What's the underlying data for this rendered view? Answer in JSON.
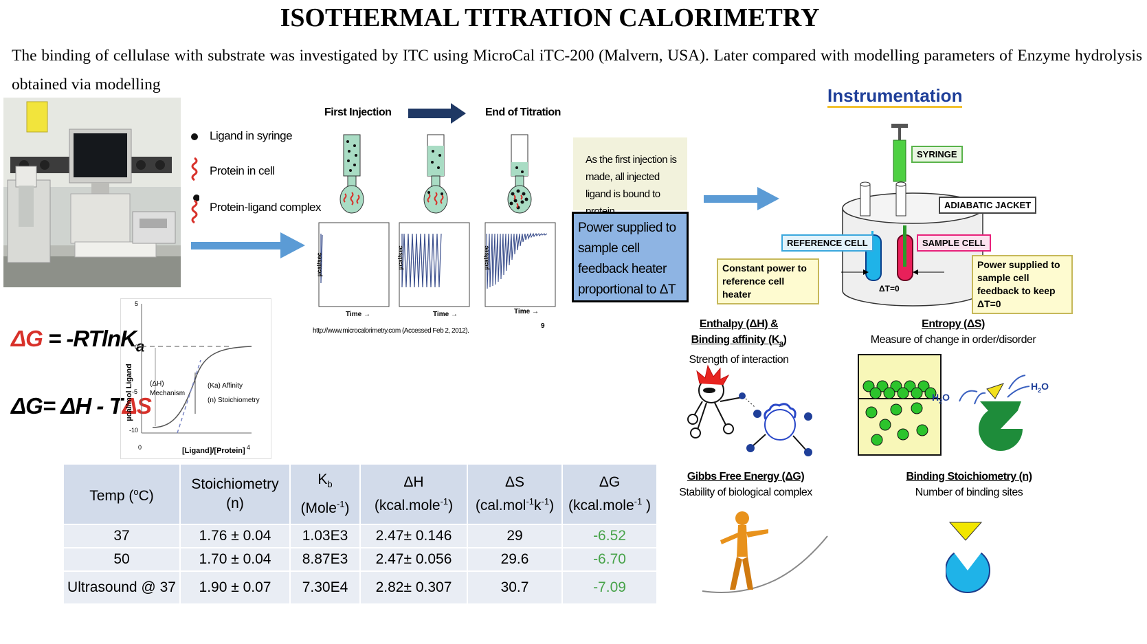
{
  "title": "ISOTHERMAL TITRATION CALORIMETRY",
  "intro": "The binding of cellulase with substrate was investigated by ITC using MicroCal iTC-200 (Malvern, USA). Later compared with modelling parameters of Enzyme hydrolysis obtained via modelling",
  "legend": {
    "ligand": "Ligand in syringe",
    "protein": "Protein in cell",
    "complex": "Protein-ligand complex"
  },
  "titration": {
    "first": "First Injection",
    "end": "End of Titration",
    "ylabel": "µcal/sec",
    "xlabel": "Time",
    "url": "http://www.microcalorimetry.com (Accessed Feb 2, 2012).",
    "page": "9"
  },
  "note_box": "As the first injection is made, all injected ligand is bound to protein",
  "power_box": "Power supplied to sample cell feedback heater proportional to ΔT",
  "equations": {
    "eq1": "ΔG = -RTlnK",
    "eq1_sub": "a",
    "eq2_a": "ΔG= ΔH - T",
    "eq2_b": "ΔS"
  },
  "binding_curve": {
    "ylabel": "µcal/mol Ligand",
    "xlabel": "[Ligand]/[Protein]",
    "yticks": [
      "5",
      "0",
      "-5",
      "-10"
    ],
    "xticks": [
      "0",
      "4"
    ],
    "ann_dh": "(ΔH)",
    "ann_mech": "Mechanism",
    "ann_ka": "(Ka) Affinity",
    "ann_n": "(n) Stoichiometry"
  },
  "instrumentation": {
    "title": "Instrumentation",
    "syringe": "SYRINGE",
    "jacket": "ADIABATIC JACKET",
    "ref_cell": "REFERENCE CELL",
    "sample_cell": "SAMPLE CELL",
    "const_power": "Constant power to reference cell heater",
    "power_sample": "Power supplied to sample cell feedback to keep ΔT=0",
    "delta_t": "ΔT=0"
  },
  "panels": {
    "enthalpy_title": "Enthalpy (ΔH) & Binding affinity (K",
    "enthalpy_sub": "a",
    "enthalpy_desc": "Strength of interaction",
    "entropy_title": "Entropy (ΔS)",
    "entropy_desc": "Measure of change in order/disorder",
    "gibbs_title": "Gibbs Free Energy (ΔG)",
    "gibbs_desc": "Stability of biological complex",
    "stoich_title": "Binding Stoichiometry (n)",
    "stoich_desc": "Number of binding sites",
    "h2o": "H",
    "h2o_sub": "2",
    "h2o_end": "O"
  },
  "table": {
    "headers": {
      "temp": "Temp (",
      "temp_sup": "o",
      "temp_end": "C)",
      "stoich1": "Stoichiometry",
      "stoich2": "(n)",
      "kb": "K",
      "kb_sub": "b",
      "kb_unit": "(Mole",
      "kb_unit_sup": "-1",
      "kb_unit_end": ")",
      "dh": "ΔH",
      "dh_unit": "(kcal.mole",
      "dh_unit_sup": "-1",
      "dh_unit_end": ")",
      "ds": "ΔS",
      "ds_unit_a": "(cal.mol",
      "ds_unit_sup1": "-1",
      "ds_unit_b": "k",
      "ds_unit_sup2": "-1",
      "ds_unit_end": ")",
      "dg": "ΔG",
      "dg_unit": "(kcal.mole",
      "dg_unit_sup": "-1",
      "dg_unit_end": " )"
    },
    "rows": [
      {
        "temp": "37",
        "n": "1.76 ± 0.04",
        "kb": "1.03E3",
        "dh": "2.47± 0.146",
        "ds": "29",
        "dg": "-6.52"
      },
      {
        "temp": "50",
        "n": "1.70 ± 0.04",
        "kb": "8.87E3",
        "dh": "2.47± 0.056",
        "ds": "29.6",
        "dg": "-6.70"
      },
      {
        "temp": "Ultrasound @ 37",
        "n": "1.90 ± 0.07",
        "kb": "7.30E4",
        "dh": "2.82± 0.307",
        "ds": "30.7",
        "dg": "-7.09"
      }
    ]
  },
  "colors": {
    "arrow_blue": "#5b9bd5",
    "dark_navy": "#1f3864",
    "power_box": "#8eb4e3",
    "note_box": "#f2f2dc",
    "table_header": "#d2dbea",
    "table_row": "#e9edf4",
    "dg_green": "#48a34a",
    "title_blue": "#1f3f99"
  }
}
